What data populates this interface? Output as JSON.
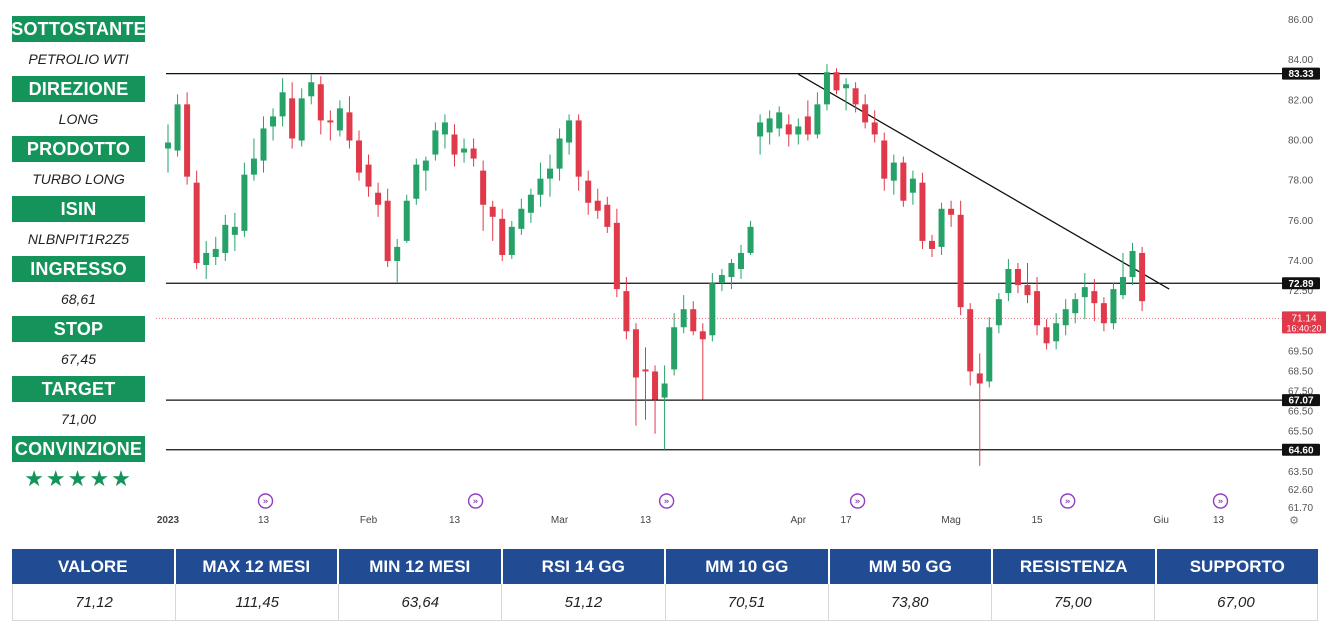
{
  "sidebar": {
    "sottostante_label": "SOTTOSTANTE",
    "sottostante_value": "PETROLIO WTI",
    "direzione_label": "DIREZIONE",
    "direzione_value": "LONG",
    "prodotto_label": "PRODOTTO",
    "prodotto_value": "TURBO LONG",
    "isin_label": "ISIN",
    "isin_value": "NLBNPIT1R2Z5",
    "ingresso_label": "INGRESSO",
    "ingresso_value": "68,61",
    "stop_label": "STOP",
    "stop_value": "67,45",
    "target_label": "TARGET",
    "target_value": "71,00",
    "convinzione_label": "CONVINZIONE",
    "convinzione_stars": "★★★★★"
  },
  "stats": {
    "headers": [
      "VALORE",
      "MAX 12 MESI",
      "MIN 12 MESI",
      "RSI 14 GG",
      "MM 10 GG",
      "MM 50 GG",
      "RESISTENZA",
      "SUPPORTO"
    ],
    "values": [
      "71,12",
      "111,45",
      "63,64",
      "51,12",
      "70,51",
      "73,80",
      "75,00",
      "67,00"
    ]
  },
  "colors": {
    "green": "#14935a",
    "navy": "#214c93",
    "up": "#26a269",
    "down": "#e0394a",
    "event_icon": "#8e3ec2"
  },
  "icons": {
    "event_marker": "event-marker-icon",
    "settings": "gear-icon"
  },
  "chart_data": {
    "type": "candlestick",
    "y_axis_position": "right",
    "ylim": [
      61.7,
      86.0
    ],
    "y_ticks": [
      "86.00",
      "84.00",
      "82.00",
      "80.00",
      "78.00",
      "76.00",
      "74.00",
      "72.50",
      "69.50",
      "68.50",
      "67.50",
      "66.50",
      "65.50",
      "63.50",
      "62.60",
      "61.70"
    ],
    "x_ticks": [
      "2023",
      "13",
      "Feb",
      "13",
      "Mar",
      "13",
      "Apr",
      "17",
      "Mag",
      "15",
      "Giu",
      "13"
    ],
    "horizontal_lines": [
      {
        "value": 83.33,
        "label": "83.33"
      },
      {
        "value": 72.89,
        "label": "72.89"
      },
      {
        "value": 67.07,
        "label": "67.07"
      },
      {
        "value": 64.6,
        "label": "64.60"
      }
    ],
    "trendline": {
      "from_index": 66,
      "from_value": 83.3,
      "to_index": 104,
      "to_value": 72.6
    },
    "last_price": {
      "label": "71.14",
      "time": "16:40:20",
      "value": 71.14
    },
    "event_marker_indices": [
      10,
      32,
      52,
      72,
      94,
      110
    ],
    "candles": [
      {
        "o": 79.6,
        "h": 80.8,
        "l": 78.4,
        "c": 79.9
      },
      {
        "o": 79.5,
        "h": 82.3,
        "l": 79.2,
        "c": 81.8
      },
      {
        "o": 81.8,
        "h": 82.4,
        "l": 77.8,
        "c": 78.2
      },
      {
        "o": 77.9,
        "h": 78.5,
        "l": 73.6,
        "c": 73.9
      },
      {
        "o": 73.8,
        "h": 75.0,
        "l": 73.1,
        "c": 74.4
      },
      {
        "o": 74.2,
        "h": 75.2,
        "l": 73.8,
        "c": 74.6
      },
      {
        "o": 74.4,
        "h": 76.3,
        "l": 74.0,
        "c": 75.8
      },
      {
        "o": 75.3,
        "h": 76.4,
        "l": 74.5,
        "c": 75.7
      },
      {
        "o": 75.5,
        "h": 78.9,
        "l": 75.2,
        "c": 78.3
      },
      {
        "o": 78.3,
        "h": 80.1,
        "l": 78.0,
        "c": 79.1
      },
      {
        "o": 79.0,
        "h": 81.2,
        "l": 78.4,
        "c": 80.6
      },
      {
        "o": 80.7,
        "h": 81.6,
        "l": 80.0,
        "c": 81.2
      },
      {
        "o": 81.2,
        "h": 83.1,
        "l": 80.7,
        "c": 82.4
      },
      {
        "o": 82.1,
        "h": 82.9,
        "l": 79.6,
        "c": 80.1
      },
      {
        "o": 80.0,
        "h": 82.6,
        "l": 79.7,
        "c": 82.1
      },
      {
        "o": 82.2,
        "h": 83.3,
        "l": 81.8,
        "c": 82.9
      },
      {
        "o": 82.8,
        "h": 83.2,
        "l": 80.3,
        "c": 81.0
      },
      {
        "o": 81.0,
        "h": 81.5,
        "l": 80.0,
        "c": 80.9
      },
      {
        "o": 80.5,
        "h": 82.0,
        "l": 80.2,
        "c": 81.6
      },
      {
        "o": 81.4,
        "h": 82.2,
        "l": 79.6,
        "c": 80.0
      },
      {
        "o": 80.0,
        "h": 80.5,
        "l": 78.0,
        "c": 78.4
      },
      {
        "o": 78.8,
        "h": 79.3,
        "l": 77.2,
        "c": 77.7
      },
      {
        "o": 77.4,
        "h": 77.9,
        "l": 76.2,
        "c": 76.8
      },
      {
        "o": 77.0,
        "h": 77.6,
        "l": 73.7,
        "c": 74.0
      },
      {
        "o": 74.0,
        "h": 75.1,
        "l": 72.9,
        "c": 74.7
      },
      {
        "o": 75.0,
        "h": 77.3,
        "l": 74.9,
        "c": 77.0
      },
      {
        "o": 77.1,
        "h": 79.1,
        "l": 76.8,
        "c": 78.8
      },
      {
        "o": 78.5,
        "h": 79.2,
        "l": 77.5,
        "c": 79.0
      },
      {
        "o": 79.3,
        "h": 80.9,
        "l": 79.0,
        "c": 80.5
      },
      {
        "o": 80.3,
        "h": 81.3,
        "l": 79.6,
        "c": 80.9
      },
      {
        "o": 80.3,
        "h": 80.8,
        "l": 78.7,
        "c": 79.3
      },
      {
        "o": 79.4,
        "h": 80.1,
        "l": 78.9,
        "c": 79.6
      },
      {
        "o": 79.6,
        "h": 80.1,
        "l": 78.7,
        "c": 79.1
      },
      {
        "o": 78.5,
        "h": 79.0,
        "l": 75.5,
        "c": 76.8
      },
      {
        "o": 76.7,
        "h": 77.0,
        "l": 75.0,
        "c": 76.2
      },
      {
        "o": 76.1,
        "h": 76.6,
        "l": 74.0,
        "c": 74.3
      },
      {
        "o": 74.3,
        "h": 76.0,
        "l": 74.1,
        "c": 75.7
      },
      {
        "o": 75.6,
        "h": 77.1,
        "l": 75.3,
        "c": 76.6
      },
      {
        "o": 76.4,
        "h": 77.6,
        "l": 75.9,
        "c": 77.3
      },
      {
        "o": 77.3,
        "h": 78.9,
        "l": 76.7,
        "c": 78.1
      },
      {
        "o": 78.1,
        "h": 79.3,
        "l": 77.2,
        "c": 78.6
      },
      {
        "o": 78.6,
        "h": 80.6,
        "l": 78.0,
        "c": 80.1
      },
      {
        "o": 79.9,
        "h": 81.3,
        "l": 79.3,
        "c": 81.0
      },
      {
        "o": 81.0,
        "h": 81.3,
        "l": 77.5,
        "c": 78.2
      },
      {
        "o": 78.0,
        "h": 78.5,
        "l": 76.3,
        "c": 76.9
      },
      {
        "o": 77.0,
        "h": 77.6,
        "l": 76.1,
        "c": 76.5
      },
      {
        "o": 76.8,
        "h": 77.2,
        "l": 75.4,
        "c": 75.7
      },
      {
        "o": 75.9,
        "h": 76.6,
        "l": 72.2,
        "c": 72.6
      },
      {
        "o": 72.5,
        "h": 73.2,
        "l": 70.1,
        "c": 70.5
      },
      {
        "o": 70.6,
        "h": 70.9,
        "l": 65.8,
        "c": 68.2
      },
      {
        "o": 68.6,
        "h": 69.7,
        "l": 66.1,
        "c": 68.5
      },
      {
        "o": 68.5,
        "h": 68.8,
        "l": 65.4,
        "c": 67.1
      },
      {
        "o": 67.2,
        "h": 68.8,
        "l": 64.6,
        "c": 67.9
      },
      {
        "o": 68.6,
        "h": 71.4,
        "l": 68.3,
        "c": 70.7
      },
      {
        "o": 70.7,
        "h": 72.3,
        "l": 70.4,
        "c": 71.6
      },
      {
        "o": 71.6,
        "h": 72.0,
        "l": 70.3,
        "c": 70.5
      },
      {
        "o": 70.5,
        "h": 70.9,
        "l": 67.1,
        "c": 70.1
      },
      {
        "o": 70.3,
        "h": 73.4,
        "l": 70.0,
        "c": 72.9
      },
      {
        "o": 72.9,
        "h": 73.6,
        "l": 72.5,
        "c": 73.3
      },
      {
        "o": 73.2,
        "h": 74.1,
        "l": 72.6,
        "c": 73.9
      },
      {
        "o": 73.6,
        "h": 74.8,
        "l": 73.1,
        "c": 74.4
      },
      {
        "o": 74.4,
        "h": 76.0,
        "l": 74.3,
        "c": 75.7
      },
      {
        "o": 80.2,
        "h": 81.3,
        "l": 79.3,
        "c": 80.9
      },
      {
        "o": 80.4,
        "h": 81.5,
        "l": 79.8,
        "c": 81.1
      },
      {
        "o": 80.6,
        "h": 81.7,
        "l": 80.2,
        "c": 81.4
      },
      {
        "o": 80.8,
        "h": 81.3,
        "l": 79.7,
        "c": 80.3
      },
      {
        "o": 80.3,
        "h": 81.1,
        "l": 79.8,
        "c": 80.7
      },
      {
        "o": 81.2,
        "h": 82.0,
        "l": 80.0,
        "c": 80.3
      },
      {
        "o": 80.3,
        "h": 82.4,
        "l": 80.1,
        "c": 81.8
      },
      {
        "o": 81.8,
        "h": 83.8,
        "l": 81.5,
        "c": 83.4
      },
      {
        "o": 83.4,
        "h": 83.6,
        "l": 82.3,
        "c": 82.5
      },
      {
        "o": 82.6,
        "h": 83.1,
        "l": 81.5,
        "c": 82.8
      },
      {
        "o": 82.6,
        "h": 82.9,
        "l": 81.4,
        "c": 81.8
      },
      {
        "o": 81.8,
        "h": 82.3,
        "l": 80.6,
        "c": 80.9
      },
      {
        "o": 80.9,
        "h": 81.5,
        "l": 79.9,
        "c": 80.3
      },
      {
        "o": 80.0,
        "h": 80.4,
        "l": 77.5,
        "c": 78.1
      },
      {
        "o": 78.0,
        "h": 79.3,
        "l": 77.3,
        "c": 78.9
      },
      {
        "o": 78.9,
        "h": 79.2,
        "l": 76.7,
        "c": 77.0
      },
      {
        "o": 77.4,
        "h": 78.5,
        "l": 76.8,
        "c": 78.1
      },
      {
        "o": 77.9,
        "h": 78.4,
        "l": 74.6,
        "c": 75.0
      },
      {
        "o": 75.0,
        "h": 75.3,
        "l": 74.2,
        "c": 74.6
      },
      {
        "o": 74.7,
        "h": 76.9,
        "l": 74.3,
        "c": 76.6
      },
      {
        "o": 76.6,
        "h": 77.0,
        "l": 75.7,
        "c": 76.3
      },
      {
        "o": 76.3,
        "h": 77.0,
        "l": 71.3,
        "c": 71.7
      },
      {
        "o": 71.6,
        "h": 71.9,
        "l": 67.8,
        "c": 68.5
      },
      {
        "o": 68.4,
        "h": 69.4,
        "l": 63.8,
        "c": 67.9
      },
      {
        "o": 68.0,
        "h": 71.2,
        "l": 67.7,
        "c": 70.7
      },
      {
        "o": 70.8,
        "h": 72.4,
        "l": 70.4,
        "c": 72.1
      },
      {
        "o": 72.4,
        "h": 74.1,
        "l": 72.0,
        "c": 73.6
      },
      {
        "o": 73.6,
        "h": 73.9,
        "l": 72.4,
        "c": 72.8
      },
      {
        "o": 72.8,
        "h": 73.9,
        "l": 71.9,
        "c": 72.3
      },
      {
        "o": 72.5,
        "h": 73.2,
        "l": 70.3,
        "c": 70.8
      },
      {
        "o": 70.7,
        "h": 71.1,
        "l": 69.6,
        "c": 69.9
      },
      {
        "o": 70.0,
        "h": 71.4,
        "l": 69.6,
        "c": 70.9
      },
      {
        "o": 70.8,
        "h": 72.1,
        "l": 70.3,
        "c": 71.6
      },
      {
        "o": 71.4,
        "h": 72.4,
        "l": 70.9,
        "c": 72.1
      },
      {
        "o": 72.2,
        "h": 73.4,
        "l": 71.1,
        "c": 72.7
      },
      {
        "o": 72.5,
        "h": 73.1,
        "l": 71.0,
        "c": 71.9
      },
      {
        "o": 71.9,
        "h": 72.2,
        "l": 70.5,
        "c": 70.9
      },
      {
        "o": 70.9,
        "h": 72.9,
        "l": 70.6,
        "c": 72.6
      },
      {
        "o": 72.3,
        "h": 74.4,
        "l": 72.1,
        "c": 73.2
      },
      {
        "o": 73.2,
        "h": 74.9,
        "l": 72.8,
        "c": 74.5
      },
      {
        "o": 74.4,
        "h": 74.7,
        "l": 71.5,
        "c": 72.0
      }
    ]
  }
}
